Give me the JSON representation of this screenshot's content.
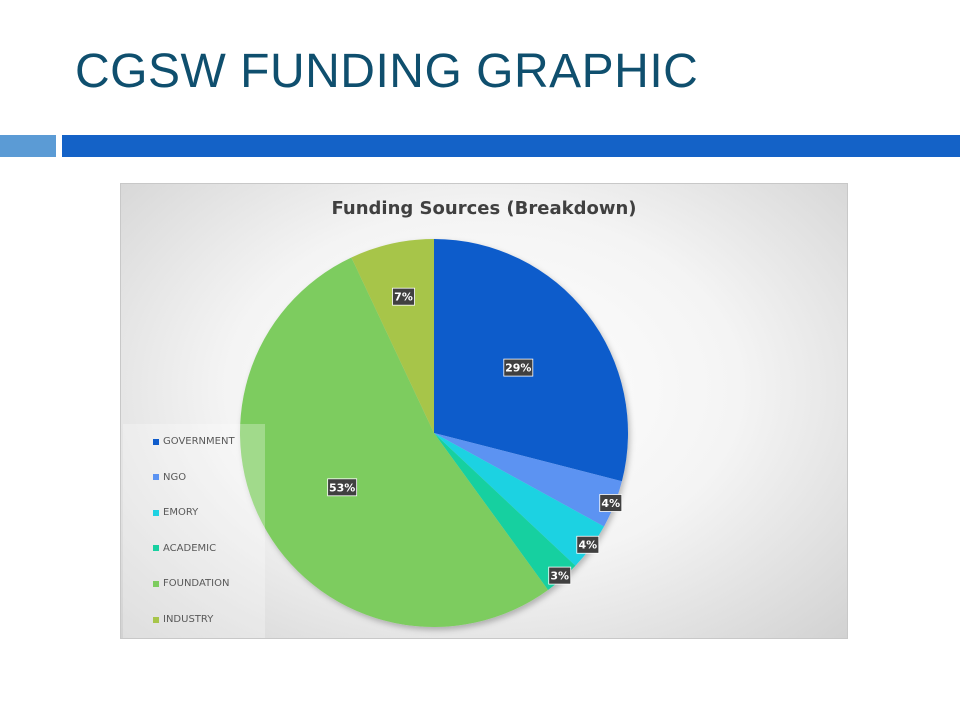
{
  "slide": {
    "title": "CGSW FUNDING GRAPHIC",
    "accent_color": "#1462c7",
    "accent_light_color": "#5b9bd5",
    "title_color": "#0f4f6e"
  },
  "chart_data": {
    "type": "pie",
    "title": "Funding Sources (Breakdown)",
    "categories": [
      "GOVERNMENT",
      "NGO",
      "EMORY",
      "ACADEMIC",
      "FOUNDATION",
      "INDUSTRY"
    ],
    "values": [
      29,
      4,
      4,
      3,
      53,
      7
    ],
    "labels": [
      "29%",
      "4%",
      "4%",
      "3%",
      "53%",
      "7%"
    ],
    "colors": [
      "#0f5ccb",
      "#5b93f2",
      "#1fd2e2",
      "#18d0a0",
      "#7dcc5f",
      "#a7c54a"
    ],
    "legend_position": "left",
    "start_angle_deg": 0,
    "direction": "clockwise"
  }
}
